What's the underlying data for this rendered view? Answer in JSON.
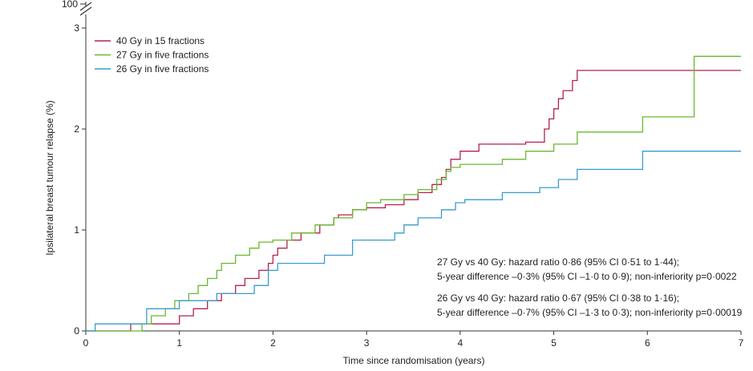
{
  "chart_data": {
    "type": "line",
    "xlabel": "Time since randomisation (years)",
    "ylabel": "Ipsilateral breast tumour relapse (%)",
    "xlim": [
      0,
      7
    ],
    "ylim": [
      0,
      3
    ],
    "x_ticks": [
      "0",
      "1",
      "2",
      "3",
      "4",
      "5",
      "6",
      "7"
    ],
    "y_ticks": [
      "0",
      "1",
      "2",
      "3"
    ],
    "y_axis_break_label": "100",
    "grid": false,
    "legend_position": "top-left",
    "step": true,
    "series": [
      {
        "name": "40 Gy in 15 fractions",
        "color": "#b5224f",
        "x": [
          0,
          0.48,
          1.0,
          1.15,
          1.3,
          1.45,
          1.6,
          1.7,
          1.85,
          1.95,
          2.0,
          2.05,
          2.15,
          2.3,
          2.5,
          2.65,
          2.7,
          2.85,
          3.0,
          3.2,
          3.4,
          3.55,
          3.7,
          3.8,
          3.85,
          3.9,
          4.0,
          4.2,
          4.45,
          4.7,
          4.9,
          4.95,
          5.0,
          5.05,
          5.1,
          5.2,
          5.25,
          7.0
        ],
        "y": [
          0,
          0.07,
          0.15,
          0.22,
          0.3,
          0.37,
          0.45,
          0.52,
          0.6,
          0.67,
          0.75,
          0.82,
          0.9,
          0.97,
          1.05,
          1.12,
          1.15,
          1.2,
          1.22,
          1.25,
          1.3,
          1.37,
          1.45,
          1.52,
          1.6,
          1.7,
          1.78,
          1.85,
          1.85,
          1.87,
          2.0,
          2.1,
          2.2,
          2.3,
          2.38,
          2.48,
          2.58,
          2.58
        ]
      },
      {
        "name": "27 Gy in five fractions",
        "color": "#6ab82f",
        "x": [
          0,
          0.6,
          0.7,
          0.85,
          0.95,
          1.1,
          1.2,
          1.3,
          1.4,
          1.45,
          1.6,
          1.75,
          1.85,
          2.0,
          2.2,
          2.45,
          2.65,
          2.85,
          3.0,
          3.15,
          3.4,
          3.55,
          3.75,
          3.85,
          3.9,
          4.0,
          4.45,
          4.7,
          5.0,
          5.25,
          5.95,
          6.5,
          7.0
        ],
        "y": [
          0,
          0.07,
          0.15,
          0.22,
          0.3,
          0.37,
          0.45,
          0.52,
          0.6,
          0.67,
          0.75,
          0.82,
          0.88,
          0.9,
          0.97,
          1.05,
          1.12,
          1.2,
          1.27,
          1.3,
          1.35,
          1.4,
          1.5,
          1.58,
          1.62,
          1.65,
          1.7,
          1.78,
          1.85,
          1.97,
          2.12,
          2.72,
          2.72
        ]
      },
      {
        "name": "26 Gy in five fractions",
        "color": "#3a9bd0",
        "x": [
          0,
          0.1,
          0.65,
          1.0,
          1.4,
          1.8,
          1.95,
          2.05,
          2.3,
          2.55,
          2.85,
          3.3,
          3.4,
          3.55,
          3.8,
          3.95,
          4.05,
          4.45,
          4.85,
          5.05,
          5.25,
          5.95,
          7.0
        ],
        "y": [
          0,
          0.07,
          0.22,
          0.3,
          0.37,
          0.45,
          0.6,
          0.67,
          0.67,
          0.75,
          0.9,
          0.97,
          1.05,
          1.12,
          1.2,
          1.27,
          1.3,
          1.37,
          1.42,
          1.5,
          1.6,
          1.78,
          1.78
        ]
      }
    ],
    "annotations": [
      {
        "lines": [
          "27 Gy vs 40 Gy: hazard ratio 0·86 (95% CI 0·51 to 1·44);",
          "5-year difference –0·3% (95% CI –1·0 to 0·9); non-inferiority p=0·0022"
        ]
      },
      {
        "lines": [
          "26 Gy vs 40 Gy: hazard ratio 0·67 (95% CI 0·38 to 1·16);",
          "5-year difference –0·7% (95% CI –1·3 to 0·3); non-inferiority p=0·00019"
        ]
      }
    ]
  }
}
